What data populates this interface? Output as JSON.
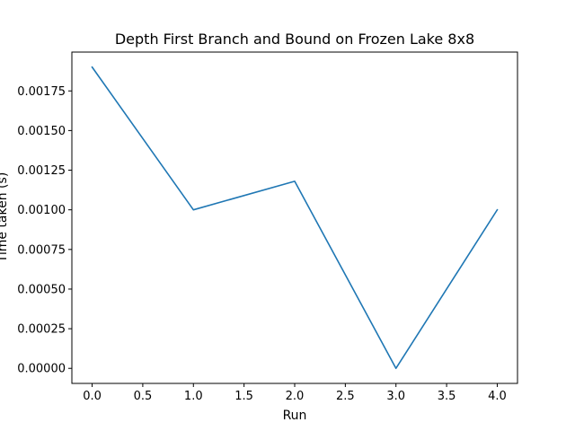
{
  "chart_data": {
    "type": "line",
    "title": "Depth First Branch and Bound on Frozen Lake 8x8",
    "xlabel": "Run",
    "ylabel": "Time taken (s)",
    "x": [
      0,
      1,
      2,
      3,
      4
    ],
    "series": [
      {
        "values": [
          0.0019,
          0.001,
          0.00118,
          0.0,
          0.001
        ],
        "color": "#1f77b4"
      }
    ],
    "xlim": [
      -0.2,
      4.2
    ],
    "ylim": [
      -9.5e-05,
      0.001995
    ],
    "xticks": [
      0.0,
      0.5,
      1.0,
      1.5,
      2.0,
      2.5,
      3.0,
      3.5,
      4.0
    ],
    "xtick_labels": [
      "0.0",
      "0.5",
      "1.0",
      "1.5",
      "2.0",
      "2.5",
      "3.0",
      "3.5",
      "4.0"
    ],
    "yticks": [
      0.0,
      0.00025,
      0.0005,
      0.00075,
      0.001,
      0.00125,
      0.0015,
      0.00175
    ],
    "ytick_labels": [
      "0.00000",
      "0.00025",
      "0.00050",
      "0.00075",
      "0.00100",
      "0.00125",
      "0.00150",
      "0.00175"
    ],
    "grid": false,
    "legend": "none"
  }
}
